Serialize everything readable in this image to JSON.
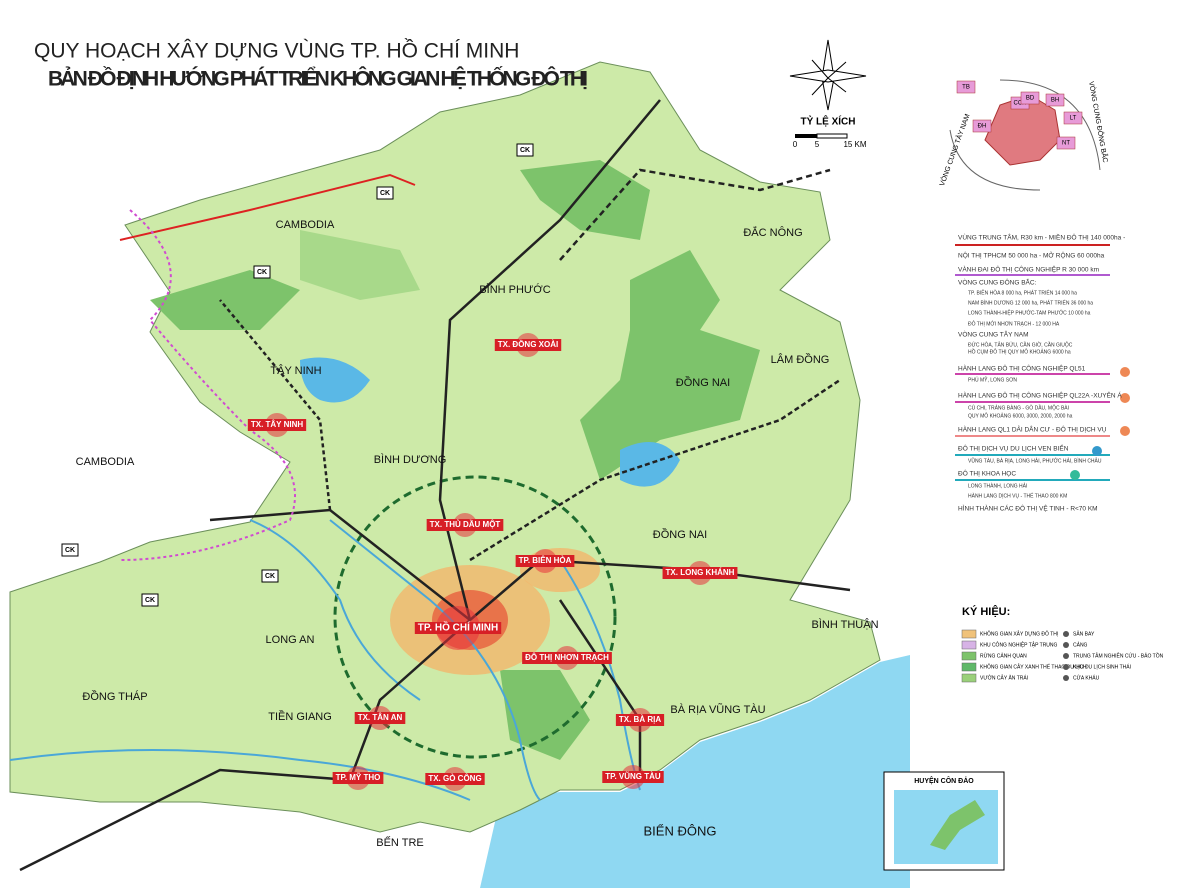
{
  "header": {
    "title": "QUY HOẠCH XÂY DỰNG VÙNG TP. HỒ CHÍ MINH",
    "subtitle": "BẢN ĐỒ ĐỊNH HƯỚNG PHÁT TRIỂN KHÔNG GIAN HỆ THỐNG ĐÔ THỊ"
  },
  "scale": {
    "label": "TỶ LỆ XÍCH",
    "ticks": [
      "0",
      "5",
      "15 KM"
    ]
  },
  "regions": [
    "CAMBODIA",
    "CAMBODIA",
    "TÂY NINH",
    "BÌNH PHƯỚC",
    "ĐẮC NÔNG",
    "LÂM ĐỒNG",
    "ĐỒNG NAI",
    "BÌNH DƯƠNG",
    "ĐỒNG NAI",
    "LONG AN",
    "BÌNH THUẬN",
    "ĐỒNG THÁP",
    "TIỀN GIANG",
    "BÀ RỊA VŨNG TÀU",
    "BẾN TRE",
    "BIỂN ĐÔNG"
  ],
  "cities": [
    "TX. ĐỒNG XOÀI",
    "TX. TÂY NINH",
    "TX. THỦ DẦU MỘT",
    "TP. BIÊN HÒA",
    "TX. LONG KHÁNH",
    "TP. HỒ CHÍ MINH",
    "ĐÔ THỊ NHƠN TRẠCH",
    "TX. TÂN AN",
    "TX. BÀ RỊA",
    "TP. MỸ THO",
    "TP. VŨNG TÀU",
    "TX. GÒ CÔNG"
  ],
  "border_gates": [
    "CK",
    "CK",
    "CK",
    "CK",
    "CK",
    "CK"
  ],
  "notes": [
    "VÙNG TRUNG TÂM, R30 km - MIỀN ĐÔ THỊ 140 000ha -",
    "NỘI THỊ TPHCM 50 000 ha - MỞ RỘNG 60 000ha",
    "VÀNH ĐAI ĐÔ THỊ CÔNG NGHIỆP R 30 000 km",
    "VÒNG CUNG ĐÔNG BẮC:",
    "TP. BIÊN HÒA 8 000 ha, PHÁT TRIỂN 14 000 ha",
    "NAM BÌNH DƯƠNG 12 000 ha, PHÁT TRIỂN 36 000 ha",
    "LONG THÀNH-HIỆP PHƯỚC-TAM PHƯỚC 10 000 ha",
    "ĐÔ THỊ MỚI NHƠN TRẠCH - 12 000 HA",
    "VÒNG CUNG TÂY NAM",
    "ĐỨC HÒA, TÂN BỬU, CẦN GIỜ, CẦN GIUỘC",
    "HỒ CỤM ĐÔ THỊ QUY MÔ KHOẢNG 6000 ha",
    "HÀNH LANG ĐÔ THỊ CÔNG NGHIỆP QL51",
    "PHÚ MỸ, LONG SƠN",
    "HÀNH LANG ĐÔ THỊ CÔNG NGHIỆP QL22A -XUYÊN Á",
    "CỦ CHI, TRẢNG BÀNG - GÒ DẦU, MỘC BÀI",
    "QUY MÔ KHOẢNG 6000, 3000, 2000, 2000 ha",
    "HÀNH LANG QL1 DẢI DÂN CƯ - ĐÔ THỊ DỊCH VỤ",
    "ĐÔ THỊ DỊCH VỤ DU LỊCH VEN BIỂN",
    "VŨNG TÀU, BÀ RỊA, LONG HẢI, PHƯỚC HẢI, BÌNH CHÂU",
    "ĐÔ THỊ KHOA HỌC",
    "LONG THÀNH, LONG HẢI",
    "HÀNH LANG DỊCH VỤ - THỂ THAO 800 KM",
    "HÌNH THÀNH CÁC ĐÔ THỊ VỆ TINH - R<70 KM"
  ],
  "legend": {
    "title": "KÝ HIỆU:",
    "items": [
      "KHÔNG GIAN XÂY DỰNG ĐÔ THỊ",
      "KHU CÔNG NGHIỆP TẬP TRUNG",
      "RỪNG CẢNH QUAN",
      "KHÔNG GIAN CÂY XANH THỂ THAO DU LỊCH",
      "VƯỜN CÂY ĂN TRÁI"
    ],
    "symbols": [
      "SÂN BAY",
      "CẢNG",
      "TRUNG TÂM NGHIÊN CỨU - BẢO TỒN",
      "KHU DU LỊCH SINH THÁI",
      "CỬA KHẨU"
    ]
  },
  "diagram": {
    "labels": [
      "TB",
      "CCH",
      "BD",
      "BH",
      "ĐH",
      "LT",
      "NT"
    ],
    "arcs": [
      "VÒNG CUNG ĐÔNG BẮC",
      "VÒNG CUNG TÂY NAM"
    ]
  },
  "inset": {
    "title": "HUYỆN CÔN ĐẢO"
  }
}
